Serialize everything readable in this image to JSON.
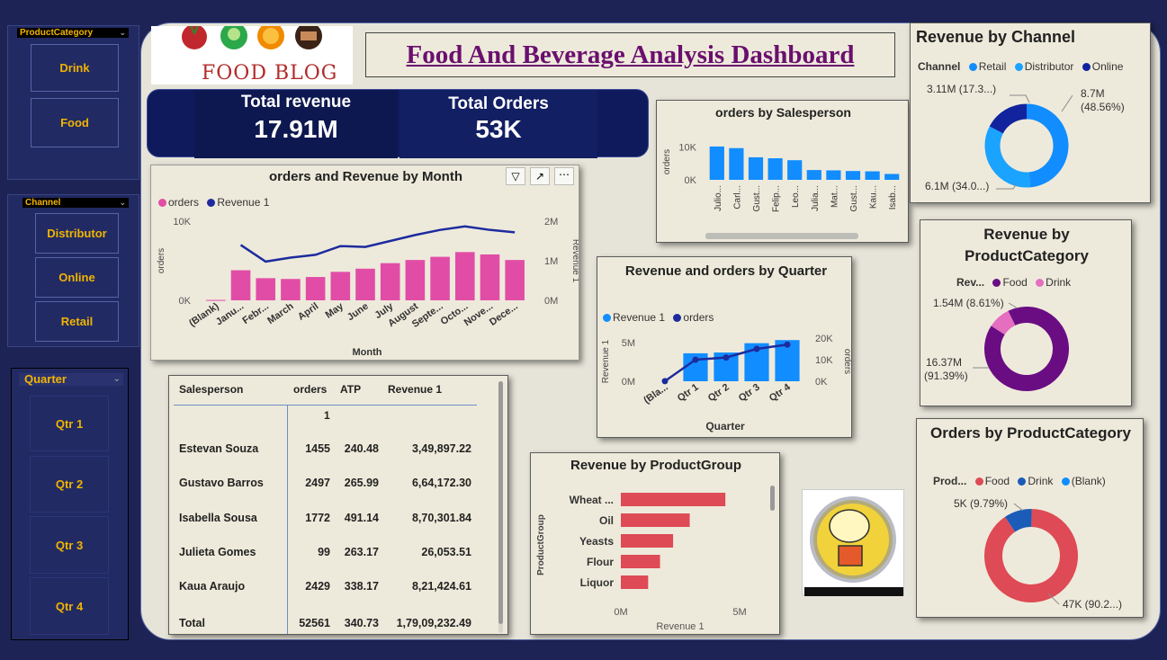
{
  "header": {
    "title": "Food And Beverage Analysis Dashboard",
    "logo_text": "FOOD BLOG"
  },
  "kpis": {
    "revenue_label": "Total revenue",
    "revenue_value": "17.91M",
    "orders_label": "Total Orders",
    "orders_value": "53K"
  },
  "slicers": {
    "product_category": {
      "title": "ProductCategory",
      "items": [
        "Drink",
        "Food"
      ]
    },
    "channel": {
      "title": "Channel",
      "items": [
        "Distributor",
        "Online",
        "Retail"
      ]
    },
    "quarter": {
      "title": "Quarter",
      "items": [
        "Qtr 1",
        "Qtr 2",
        "Qtr 3",
        "Qtr 4"
      ]
    }
  },
  "colors": {
    "pink": "#e14da6",
    "navy": "#1d2b9e",
    "blue": "#118dff",
    "purple": "#6a0d83",
    "red": "#de4a55",
    "dark_card": "#0f1a5c"
  },
  "table": {
    "headers": [
      "Salesperson",
      "orders",
      "ATP",
      "Revenue 1"
    ],
    "subheader": "1",
    "rows": [
      [
        "Estevan Souza",
        "1455",
        "240.48",
        "3,49,897.22"
      ],
      [
        "Gustavo Barros",
        "2497",
        "265.99",
        "6,64,172.30"
      ],
      [
        "Isabella Sousa",
        "1772",
        "491.14",
        "8,70,301.84"
      ],
      [
        "Julieta Gomes",
        "99",
        "263.17",
        "26,053.51"
      ],
      [
        "Kaua Araujo",
        "2429",
        "338.17",
        "8,21,424.61"
      ]
    ],
    "total": [
      "Total",
      "52561",
      "340.73",
      "1,79,09,232.49"
    ]
  },
  "chart_data": [
    {
      "id": "month",
      "type": "bar",
      "title": "orders and Revenue by Month",
      "xlabel": "Month",
      "ylabel": "orders",
      "y2label": "Revenue 1",
      "legend": [
        "orders",
        "Revenue 1"
      ],
      "categories": [
        "(Blank)",
        "Janu...",
        "Febr...",
        "March",
        "April",
        "May",
        "June",
        "July",
        "August",
        "Septe...",
        "Octo...",
        "Nove...",
        "Dece..."
      ],
      "yticks": [
        "10K",
        "0K"
      ],
      "y2ticks": [
        "2M",
        "1M",
        "0M"
      ],
      "ylim": [
        0,
        10000
      ],
      "y2lim": [
        0,
        2000000
      ],
      "series": [
        {
          "name": "orders",
          "values": [
            50,
            3800,
            2800,
            2700,
            2950,
            3600,
            4000,
            4700,
            5100,
            5500,
            6100,
            5800,
            5100
          ]
        },
        {
          "name": "Revenue 1",
          "values": [
            null,
            1400000,
            980000,
            1080000,
            1150000,
            1370000,
            1350000,
            1500000,
            1650000,
            1780000,
            1870000,
            1780000,
            1720000
          ]
        }
      ]
    },
    {
      "id": "salesperson",
      "type": "bar",
      "title": "orders by Salesperson",
      "ylabel": "orders",
      "yticks": [
        "10K",
        "0K"
      ],
      "ylim": [
        0,
        10000
      ],
      "categories": [
        "Julio...",
        "Carl...",
        "Gust...",
        "Felip...",
        "Leo...",
        "Julia...",
        "Mat...",
        "Gust...",
        "Kau...",
        "Isab..."
      ],
      "values": [
        10200,
        9700,
        6900,
        6600,
        6000,
        3000,
        2900,
        2700,
        2600,
        1800
      ]
    },
    {
      "id": "quarter",
      "type": "bar",
      "title": "Revenue and orders by Quarter",
      "xlabel": "Quarter",
      "ylabel": "Revenue 1",
      "y2label": "orders",
      "legend": [
        "Revenue 1",
        "orders"
      ],
      "categories": [
        "(Bla...",
        "Qtr 1",
        "Qtr 2",
        "Qtr 3",
        "Qtr 4"
      ],
      "yticks": [
        "5M",
        "0M"
      ],
      "y2ticks": [
        "20K",
        "10K",
        "0K"
      ],
      "ylim": [
        0,
        5000000
      ],
      "y2lim": [
        0,
        20000
      ],
      "series": [
        {
          "name": "Revenue 1",
          "values": [
            0,
            3600000,
            3700000,
            4900000,
            5300000
          ]
        },
        {
          "name": "orders",
          "values": [
            50,
            10000,
            11000,
            15000,
            17000
          ]
        }
      ]
    },
    {
      "id": "productgroup",
      "type": "bar",
      "orientation": "horizontal",
      "title": "Revenue by ProductGroup",
      "xlabel": "Revenue 1",
      "ylabel": "ProductGroup",
      "xticks": [
        "0M",
        "5M"
      ],
      "xlim": [
        0,
        5000000
      ],
      "categories": [
        "Wheat ...",
        "Oil",
        "Yeasts",
        "Flour",
        "Liquor"
      ],
      "values": [
        4400000,
        2900000,
        2200000,
        1650000,
        1150000
      ]
    },
    {
      "id": "channel",
      "type": "pie",
      "title": "Revenue by Channel",
      "legend_title": "Channel",
      "labels": [
        "Retail",
        "Distributor",
        "Online"
      ],
      "values": [
        8.7,
        6.1,
        3.11
      ],
      "data_labels": [
        "",
        "6.1M (34.0...)",
        "3.11M (17.3...)"
      ],
      "label_retail_line1": "8.7M",
      "label_retail_line2": "(48.56%)",
      "colors": [
        "#118dff",
        "#1aa3ff",
        "#12239e"
      ]
    },
    {
      "id": "revcat",
      "type": "pie",
      "title": "Revenue by ProductCategory",
      "legend_title": "Rev...",
      "labels": [
        "Food",
        "Drink"
      ],
      "values": [
        16.37,
        1.54
      ],
      "data_labels": [
        "16.37M (91.39%)",
        "1.54M (8.61%)"
      ],
      "label_food_line1": "16.37M",
      "label_food_line2": "(91.39%)",
      "colors": [
        "#6a0d83",
        "#e66ec0"
      ]
    },
    {
      "id": "ordcat",
      "type": "pie",
      "title": "Orders by ProductCategory",
      "legend_title": "Prod...",
      "labels": [
        "Food",
        "Drink",
        "(Blank)"
      ],
      "values": [
        47,
        5,
        0.01
      ],
      "data_labels": [
        "47K (90.2...)",
        "5K (9.79%)",
        ""
      ],
      "colors": [
        "#de4a55",
        "#1a5cb8",
        "#118dff"
      ]
    }
  ]
}
